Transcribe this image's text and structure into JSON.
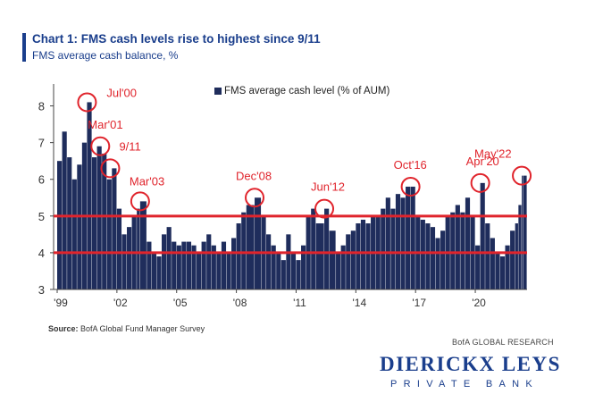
{
  "header": {
    "title": "Chart 1: FMS cash levels rise to highest since 9/11",
    "subtitle": "FMS average cash balance, %"
  },
  "footer": {
    "source_label": "Source:",
    "source_text": "BofA Global Fund Manager Survey",
    "research_label": "BofA GLOBAL RESEARCH",
    "logo_main": "DIERICKX LEYS",
    "logo_sub": "PRIVATE BANK"
  },
  "colors": {
    "bar": "#1f2d5c",
    "highlight": "#e0242c",
    "title": "#1a3e8c"
  },
  "chart_data": {
    "type": "bar",
    "title": "Chart 1: FMS cash levels rise to highest since 9/11",
    "subtitle": "FMS average cash balance, %",
    "xlabel": "",
    "ylabel": "",
    "ylim": [
      3,
      8.5
    ],
    "yticks": [
      3,
      4,
      5,
      6,
      7,
      8
    ],
    "xticks": [
      {
        "label": "'99",
        "year": 1999
      },
      {
        "label": "'02",
        "year": 2002
      },
      {
        "label": "'05",
        "year": 2005
      },
      {
        "label": "'08",
        "year": 2008
      },
      {
        "label": "'11",
        "year": 2011
      },
      {
        "label": "'14",
        "year": 2014
      },
      {
        "label": "'17",
        "year": 2017
      },
      {
        "label": "'20",
        "year": 2020
      }
    ],
    "grid": false,
    "legend": {
      "position": "top",
      "entries": [
        "FMS average cash level (% of AUM)"
      ]
    },
    "series": [
      {
        "name": "FMS average cash level (% of AUM)",
        "points": [
          [
            "1999-01",
            6.5
          ],
          [
            "1999-04",
            7.3
          ],
          [
            "1999-07",
            6.6
          ],
          [
            "1999-10",
            6.0
          ],
          [
            "2000-01",
            6.4
          ],
          [
            "2000-04",
            7.0
          ],
          [
            "2000-07",
            8.1
          ],
          [
            "2000-10",
            6.6
          ],
          [
            "2001-01",
            6.9
          ],
          [
            "2001-04",
            6.7
          ],
          [
            "2001-07",
            6.0
          ],
          [
            "2001-10",
            6.3
          ],
          [
            "2002-01",
            5.2
          ],
          [
            "2002-04",
            4.5
          ],
          [
            "2002-07",
            4.7
          ],
          [
            "2002-10",
            5.0
          ],
          [
            "2003-01",
            5.2
          ],
          [
            "2003-03",
            5.4
          ],
          [
            "2003-07",
            4.3
          ],
          [
            "2003-10",
            4.0
          ],
          [
            "2004-01",
            3.9
          ],
          [
            "2004-04",
            4.5
          ],
          [
            "2004-07",
            4.7
          ],
          [
            "2004-10",
            4.3
          ],
          [
            "2005-01",
            4.2
          ],
          [
            "2005-04",
            4.3
          ],
          [
            "2005-07",
            4.3
          ],
          [
            "2005-10",
            4.2
          ],
          [
            "2006-01",
            4.0
          ],
          [
            "2006-04",
            4.3
          ],
          [
            "2006-07",
            4.5
          ],
          [
            "2006-10",
            4.2
          ],
          [
            "2007-01",
            4.0
          ],
          [
            "2007-04",
            4.3
          ],
          [
            "2007-07",
            4.0
          ],
          [
            "2007-10",
            4.4
          ],
          [
            "2008-01",
            4.8
          ],
          [
            "2008-04",
            5.1
          ],
          [
            "2008-07",
            5.3
          ],
          [
            "2008-12",
            5.5
          ],
          [
            "2009-04",
            5.0
          ],
          [
            "2009-07",
            4.5
          ],
          [
            "2009-10",
            4.2
          ],
          [
            "2010-01",
            4.0
          ],
          [
            "2010-04",
            3.8
          ],
          [
            "2010-07",
            4.5
          ],
          [
            "2010-10",
            4.0
          ],
          [
            "2011-01",
            3.8
          ],
          [
            "2011-04",
            4.2
          ],
          [
            "2011-07",
            5.0
          ],
          [
            "2011-10",
            5.2
          ],
          [
            "2012-01",
            4.8
          ],
          [
            "2012-06",
            5.2
          ],
          [
            "2012-09",
            4.6
          ],
          [
            "2013-01",
            4.0
          ],
          [
            "2013-04",
            4.2
          ],
          [
            "2013-07",
            4.5
          ],
          [
            "2013-10",
            4.6
          ],
          [
            "2014-01",
            4.8
          ],
          [
            "2014-04",
            4.9
          ],
          [
            "2014-07",
            4.8
          ],
          [
            "2014-10",
            5.0
          ],
          [
            "2015-01",
            5.0
          ],
          [
            "2015-04",
            5.2
          ],
          [
            "2015-07",
            5.5
          ],
          [
            "2015-10",
            5.2
          ],
          [
            "2016-01",
            5.6
          ],
          [
            "2016-04",
            5.5
          ],
          [
            "2016-07",
            5.8
          ],
          [
            "2016-10",
            5.8
          ],
          [
            "2017-01",
            5.0
          ],
          [
            "2017-04",
            4.9
          ],
          [
            "2017-07",
            4.8
          ],
          [
            "2017-10",
            4.7
          ],
          [
            "2018-01",
            4.4
          ],
          [
            "2018-04",
            4.6
          ],
          [
            "2018-07",
            5.0
          ],
          [
            "2018-10",
            5.1
          ],
          [
            "2019-01",
            5.3
          ],
          [
            "2019-04",
            5.1
          ],
          [
            "2019-07",
            5.5
          ],
          [
            "2019-10",
            5.0
          ],
          [
            "2020-01",
            4.2
          ],
          [
            "2020-04",
            5.9
          ],
          [
            "2020-07",
            4.8
          ],
          [
            "2020-10",
            4.4
          ],
          [
            "2021-01",
            4.0
          ],
          [
            "2021-04",
            3.9
          ],
          [
            "2021-07",
            4.2
          ],
          [
            "2021-10",
            4.6
          ],
          [
            "2022-01",
            4.8
          ],
          [
            "2022-03",
            5.3
          ],
          [
            "2022-05",
            6.1
          ],
          [
            "2022-06",
            6.1
          ]
        ]
      }
    ],
    "reference_lines": [
      5.0,
      4.0
    ],
    "annotations": [
      {
        "label": "Jul'00",
        "x": "2000-07",
        "y": 8.1
      },
      {
        "label": "Mar'01",
        "x": "2001-03",
        "y": 6.9
      },
      {
        "label": "9/11",
        "x": "2001-09",
        "y": 6.3
      },
      {
        "label": "Mar'03",
        "x": "2003-03",
        "y": 5.4
      },
      {
        "label": "Dec'08",
        "x": "2008-12",
        "y": 5.5
      },
      {
        "label": "Jun'12",
        "x": "2012-06",
        "y": 5.2
      },
      {
        "label": "Oct'16",
        "x": "2016-10",
        "y": 5.8
      },
      {
        "label": "Apr'20",
        "x": "2020-04",
        "y": 5.9
      },
      {
        "label": "May'22",
        "x": "2022-05",
        "y": 6.1
      }
    ]
  }
}
